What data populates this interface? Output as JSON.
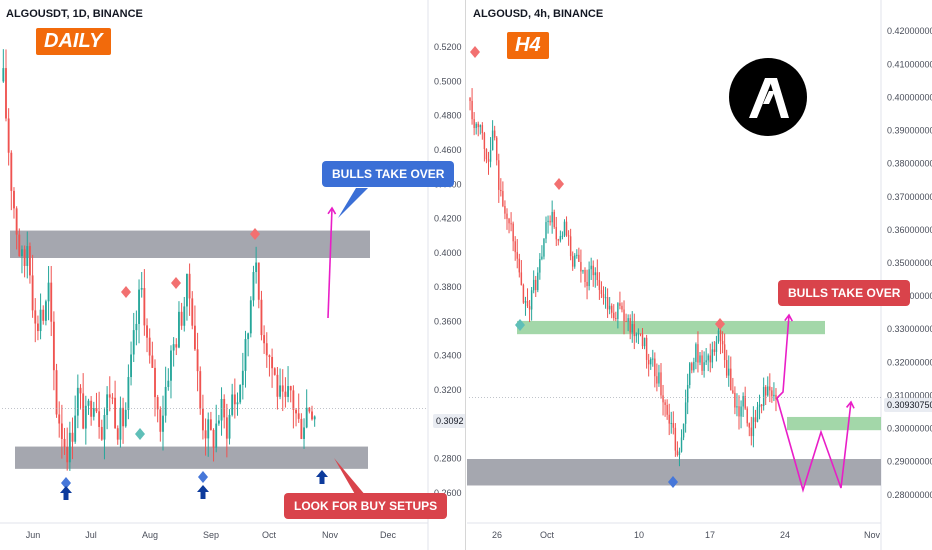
{
  "colors": {
    "up": "#26a69a",
    "down": "#ef5350",
    "zone_gray": "#9598a1",
    "zone_green": "#84c98c",
    "arrow_magenta": "#e91ec7",
    "badge_orange": "#f26a0b",
    "callout_blue": "#3b6fd6",
    "callout_red": "#d9434b",
    "marker_red": "#f27070",
    "marker_teal": "#5fbfb8",
    "marker_blue": "#4677d9",
    "buy_arrow": "#0d3b9c"
  },
  "left_chart": {
    "title": "ALGOUSDT, 1D, BINANCE",
    "timeframe_label": "DAILY",
    "callout_top": "BULLS TAKE OVER",
    "callout_bottom": "LOOK FOR BUY SETUPS",
    "price_label": "0.3092",
    "icons": [
      "diamond-marker-icon",
      "up-arrow-icon"
    ]
  },
  "right_chart": {
    "title": "ALGOUSD, 4h, BINANCE",
    "timeframe_label": "H4",
    "callout": "BULLS TAKE OVER",
    "price_label": "0.30930750",
    "logo_icon": "algorand-logo-icon"
  },
  "chart_data": [
    {
      "type": "candlestick",
      "title": "ALGOUSDT, 1D, BINANCE",
      "ylim": [
        0.25,
        0.53
      ],
      "y_ticks": [
        "0.5200",
        "0.5000",
        "0.4800",
        "0.4600",
        "0.4400",
        "0.4200",
        "0.4000",
        "0.3800",
        "0.3600",
        "0.3400",
        "0.3200",
        "0.3000",
        "0.2800",
        "0.2600"
      ],
      "y_tick_values": [
        0.52,
        0.5,
        0.48,
        0.46,
        0.44,
        0.42,
        0.4,
        0.38,
        0.36,
        0.34,
        0.32,
        0.3,
        0.28,
        0.26
      ],
      "x_ticks": [
        "Jun",
        "Jul",
        "Aug",
        "Sep",
        "Oct",
        "Nov",
        "Dec"
      ],
      "close_path": [
        0.5,
        0.47,
        0.44,
        0.42,
        0.4,
        0.39,
        0.41,
        0.38,
        0.35,
        0.37,
        0.36,
        0.38,
        0.34,
        0.31,
        0.3,
        0.29,
        0.285,
        0.3,
        0.32,
        0.31,
        0.3,
        0.31,
        0.32,
        0.31,
        0.3,
        0.31,
        0.32,
        0.31,
        0.3,
        0.3,
        0.31,
        0.33,
        0.35,
        0.37,
        0.38,
        0.35,
        0.33,
        0.32,
        0.3,
        0.31,
        0.33,
        0.34,
        0.35,
        0.36,
        0.37,
        0.38,
        0.37,
        0.34,
        0.31,
        0.3,
        0.295,
        0.29,
        0.3,
        0.31,
        0.3,
        0.3,
        0.32,
        0.31,
        0.33,
        0.34,
        0.36,
        0.4,
        0.38,
        0.36,
        0.35,
        0.34,
        0.33,
        0.32,
        0.31,
        0.31,
        0.32,
        0.31,
        0.3,
        0.3,
        0.31,
        0.312,
        0.309
      ],
      "resistance_zone": [
        0.397,
        0.413
      ],
      "support_zone": [
        0.274,
        0.287
      ],
      "current_price": 0.3092
    },
    {
      "type": "candlestick",
      "title": "ALGOUSD, 4h, BINANCE",
      "ylim": [
        0.276,
        0.424
      ],
      "y_ticks": [
        "0.42000000",
        "0.41000000",
        "0.40000000",
        "0.39000000",
        "0.38000000",
        "0.37000000",
        "0.36000000",
        "0.35000000",
        "0.34000000",
        "0.33000000",
        "0.32000000",
        "0.31000000",
        "0.30000000",
        "0.29000000",
        "0.28000000"
      ],
      "y_tick_values": [
        0.42,
        0.41,
        0.4,
        0.39,
        0.38,
        0.37,
        0.36,
        0.35,
        0.34,
        0.33,
        0.32,
        0.31,
        0.3,
        0.29,
        0.28
      ],
      "x_ticks": [
        "26",
        "Oct",
        "10",
        "17",
        "24",
        "Nov"
      ],
      "close_path": [
        0.4,
        0.39,
        0.395,
        0.385,
        0.38,
        0.39,
        0.375,
        0.37,
        0.36,
        0.36,
        0.35,
        0.34,
        0.335,
        0.34,
        0.345,
        0.35,
        0.36,
        0.365,
        0.36,
        0.355,
        0.36,
        0.355,
        0.35,
        0.35,
        0.345,
        0.345,
        0.35,
        0.345,
        0.34,
        0.34,
        0.335,
        0.335,
        0.338,
        0.33,
        0.332,
        0.328,
        0.33,
        0.325,
        0.32,
        0.318,
        0.315,
        0.31,
        0.305,
        0.3,
        0.29,
        0.3,
        0.31,
        0.32,
        0.325,
        0.32,
        0.318,
        0.32,
        0.325,
        0.33,
        0.32,
        0.315,
        0.31,
        0.305,
        0.308,
        0.302,
        0.3,
        0.305,
        0.31,
        0.312,
        0.31,
        0.309
      ],
      "resistance_zone": [
        0.3285,
        0.3325
      ],
      "support_zone": [
        0.2828,
        0.2908
      ],
      "green_retest_zone": [
        0.2995,
        0.3035
      ],
      "current_price": 0.3093075
    }
  ]
}
